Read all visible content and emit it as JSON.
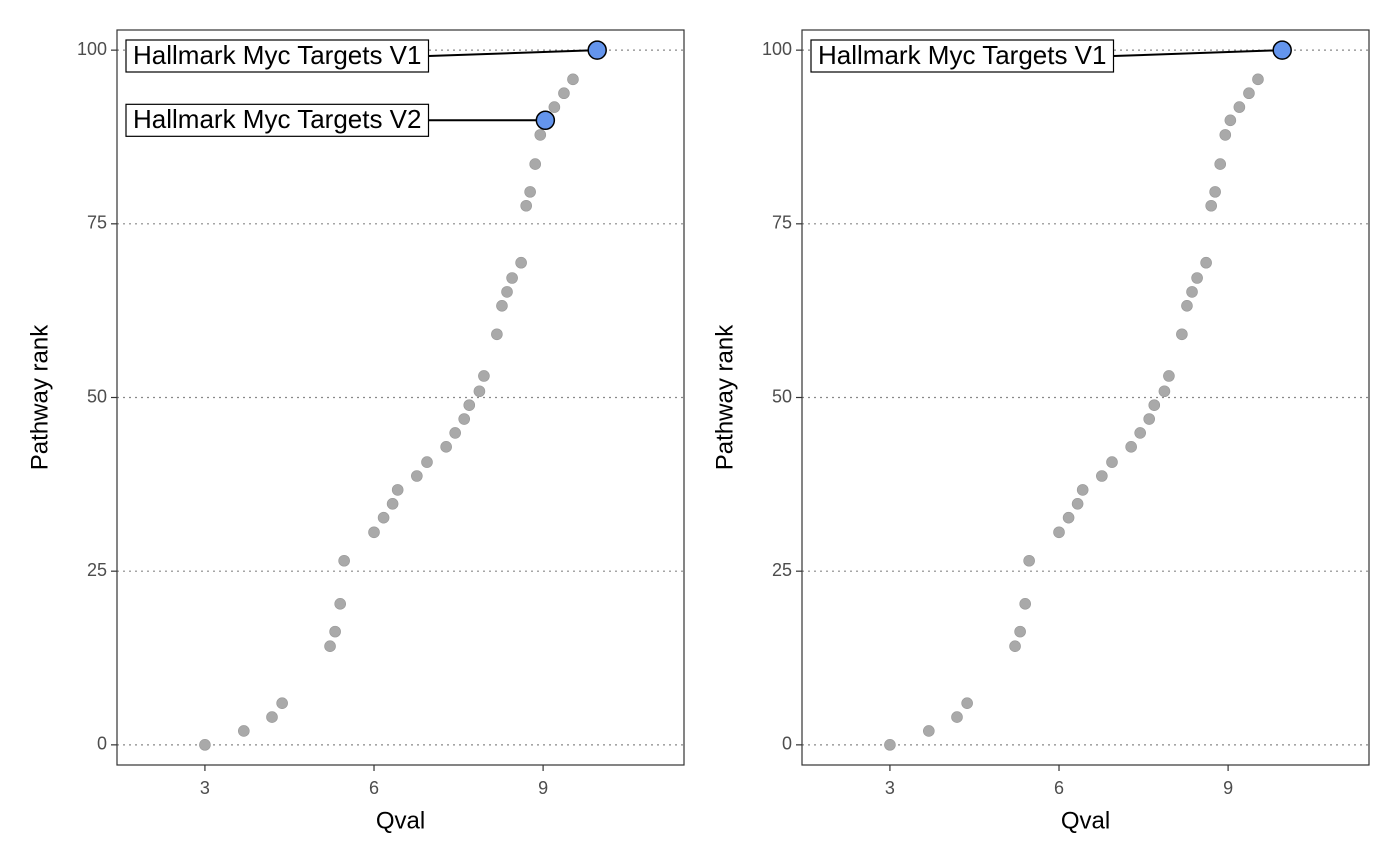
{
  "chart_data": [
    {
      "type": "scatter",
      "xlabel": "Qval",
      "ylabel": "Pathway rank",
      "x": [
        3.0,
        3.69,
        4.19,
        4.37,
        5.22,
        5.31,
        5.4,
        5.47,
        6.0,
        6.17,
        6.33,
        6.42,
        6.76,
        6.94,
        7.28,
        7.44,
        7.6,
        7.69,
        7.87,
        7.95,
        8.18,
        8.27,
        8.36,
        8.45,
        8.61,
        8.7,
        8.77,
        8.86,
        8.95,
        9.2,
        9.37,
        9.53
      ],
      "values": [
        0,
        2,
        4,
        6,
        14.2,
        16.3,
        20.3,
        26.5,
        30.6,
        32.7,
        34.7,
        36.7,
        38.7,
        40.7,
        42.9,
        44.9,
        46.9,
        48.9,
        50.9,
        53.1,
        59.1,
        63.2,
        65.2,
        67.2,
        69.4,
        77.6,
        79.6,
        83.6,
        87.8,
        91.8,
        93.8,
        95.8
      ],
      "color": "#a9a9a9",
      "highlight": {
        "color": "#6495ed",
        "labels": [
          "Hallmark Myc Targets V1",
          "Hallmark Myc Targets V2"
        ],
        "x": [
          9.96,
          9.04
        ],
        "values": [
          100,
          89.9
        ]
      },
      "xlim": [
        1.44,
        11.5
      ],
      "ylim": [
        -2.9,
        102.9
      ],
      "xticks": [
        3,
        6,
        9
      ],
      "yticks": [
        0,
        25,
        50,
        75,
        100
      ],
      "grid": true
    },
    {
      "type": "scatter",
      "xlabel": "Qval",
      "ylabel": "Pathway rank",
      "x": [
        3.0,
        3.69,
        4.19,
        4.37,
        5.22,
        5.31,
        5.4,
        5.47,
        6.0,
        6.17,
        6.33,
        6.42,
        6.76,
        6.94,
        7.28,
        7.44,
        7.6,
        7.69,
        7.87,
        7.95,
        8.18,
        8.27,
        8.36,
        8.45,
        8.61,
        8.7,
        8.77,
        8.86,
        8.95,
        9.04,
        9.2,
        9.37,
        9.53
      ],
      "values": [
        0,
        2,
        4,
        6,
        14.2,
        16.3,
        20.3,
        26.5,
        30.6,
        32.7,
        34.7,
        36.7,
        38.7,
        40.7,
        42.9,
        44.9,
        46.9,
        48.9,
        50.9,
        53.1,
        59.1,
        63.2,
        65.2,
        67.2,
        69.4,
        77.6,
        79.6,
        83.6,
        87.8,
        89.9,
        91.8,
        93.8,
        95.8
      ],
      "color": "#a9a9a9",
      "highlight": {
        "color": "#6495ed",
        "labels": [
          "Hallmark Myc Targets V1"
        ],
        "x": [
          9.96
        ],
        "values": [
          100
        ]
      },
      "xlim": [
        1.44,
        11.5
      ],
      "ylim": [
        -2.9,
        102.9
      ],
      "xticks": [
        3,
        6,
        9
      ],
      "yticks": [
        0,
        25,
        50,
        75,
        100
      ],
      "grid": true
    }
  ]
}
